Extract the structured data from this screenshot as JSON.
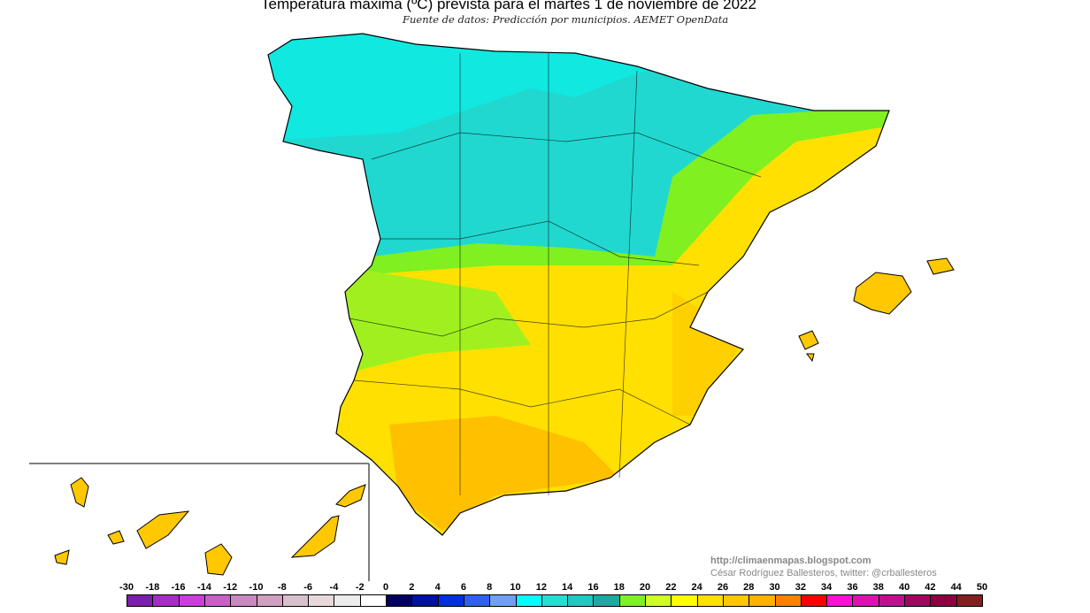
{
  "title": "Temperatura máxima (ºC) prevista para el martes 1 de noviembre de 2022",
  "subtitle": "Fuente de datos: Predicción por municipios. AEMET OpenData",
  "credits": {
    "url": "http://climaenmapas.blogspot.com",
    "author": "César Rodríguez Ballesteros, twitter: @crballesteros"
  },
  "legend": {
    "unit": "ºC",
    "labels": [
      "-30",
      "-18",
      "-16",
      "-14",
      "-12",
      "-10",
      "-8",
      "-6",
      "-4",
      "-2",
      "0",
      "2",
      "4",
      "6",
      "8",
      "10",
      "12",
      "14",
      "16",
      "18",
      "20",
      "22",
      "24",
      "26",
      "28",
      "30",
      "32",
      "34",
      "36",
      "38",
      "40",
      "42",
      "44",
      "50"
    ],
    "colors": [
      "#7a1fa8",
      "#a32ec0",
      "#c840d8",
      "#c860c8",
      "#c888c0",
      "#d0a0c0",
      "#d8c0cc",
      "#e8d8dc",
      "#ececec",
      "#ffffff",
      "#000060",
      "#0010a0",
      "#0030e0",
      "#3060f0",
      "#70a0f0",
      "#00ffff",
      "#20e0d0",
      "#20c8c0",
      "#20a8a0",
      "#80f020",
      "#d0ff20",
      "#ffff00",
      "#ffe000",
      "#ffc800",
      "#ffb000",
      "#ff8000",
      "#ff0000",
      "#ff10d0",
      "#e010b0",
      "#c01090",
      "#a00860",
      "#8a0040",
      "#802020"
    ]
  },
  "map": {
    "region": "Spain (peninsula, Balearic Islands, Canary Islands inset)",
    "dominant_colors": {
      "north": "#20d8d0",
      "center": "#80f020",
      "east_south": "#ffe000",
      "southwest": "#ffc800"
    }
  }
}
